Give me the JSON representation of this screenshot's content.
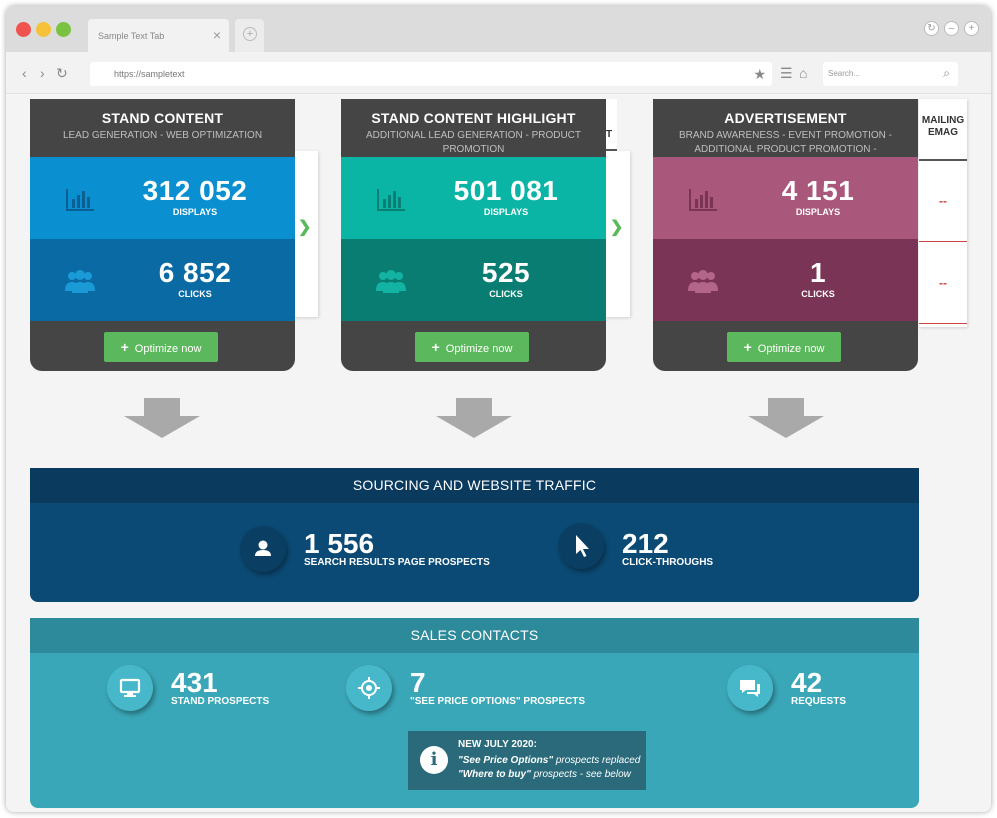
{
  "browser": {
    "tab_title": "Sample Text Tab",
    "tab_close": "×",
    "new_tab": "+",
    "url": "https://sampletext",
    "search_placeholder": "Search..."
  },
  "cards": [
    {
      "title": "STAND CONTENT",
      "subtitle": "LEAD GENERATION - WEB OPTIMIZATION",
      "displays_value": "312 052",
      "displays_label": "DISPLAYS",
      "clicks_value": "6 852",
      "clicks_label": "CLICKS",
      "button_label": "Optimize now",
      "colors": {
        "head": "#454545",
        "m1": "#0a8fd0",
        "m2": "#0a6aa3",
        "icon1": "#0a5f95",
        "icon2": "#1b9ad8"
      }
    },
    {
      "title": "STAND CONTENT HIGHLIGHT",
      "subtitle": "ADDITIONAL LEAD GENERATION - PRODUCT PROMOTION",
      "displays_value": "501 081",
      "displays_label": "DISPLAYS",
      "clicks_value": "525",
      "clicks_label": "CLICKS",
      "button_label": "Optimize now",
      "colors": {
        "head": "#454545",
        "m1": "#0bb5a5",
        "m2": "#0a7d72",
        "icon1": "#0a7f73",
        "icon2": "#13b3a3"
      }
    },
    {
      "title": "ADVERTISEMENT",
      "subtitle": "BRAND AWARENESS - EVENT PROMOTION - ADDITIONAL PRODUCT PROMOTION - ADDITIONAL LEAD GENERATION",
      "displays_value": "4 151",
      "displays_label": "DISPLAYS",
      "clicks_value": "1",
      "clicks_label": "CLICKS",
      "button_label": "Optimize now",
      "colors": {
        "head": "#454545",
        "m1": "#a9577a",
        "m2": "#7a3556",
        "icon1": "#7a3556",
        "icon2": "#b4668a"
      }
    }
  ],
  "side_cutoff_text": "T",
  "mailing": {
    "header": "MAILING EMAG",
    "value1": "--",
    "value2": "--"
  },
  "sourcing": {
    "title": "SOURCING AND WEBSITE TRAFFIC",
    "stat1_value": "1 556",
    "stat1_label": "SEARCH RESULTS PAGE PROSPECTS",
    "stat2_value": "212",
    "stat2_label": "CLICK-THROUGHS",
    "colors": {
      "head": "#0a3a5e",
      "body": "#0b4a74",
      "circle": "#0a3e63"
    }
  },
  "sales": {
    "title": "SALES CONTACTS",
    "stat1_value": "431",
    "stat1_label": "STAND PROSPECTS",
    "stat2_value": "7",
    "stat2_label": "\"SEE PRICE OPTIONS\" PROSPECTS",
    "stat3_value": "42",
    "stat3_label": "REQUESTS",
    "notice_title": "NEW JULY 2020:",
    "notice_line1_em": "\"See Price Options\"",
    "notice_line1_rest": " prospects replaced",
    "notice_line2_em": "\"Where to buy\"",
    "notice_line2_rest": " prospects - see below",
    "colors": {
      "head": "#2d8a9a",
      "body": "#3aa7b8",
      "circle": "#47b8c9"
    }
  },
  "colors": {
    "button_green": "#5cb85c",
    "arrow_gray": "#a9a9a9"
  }
}
